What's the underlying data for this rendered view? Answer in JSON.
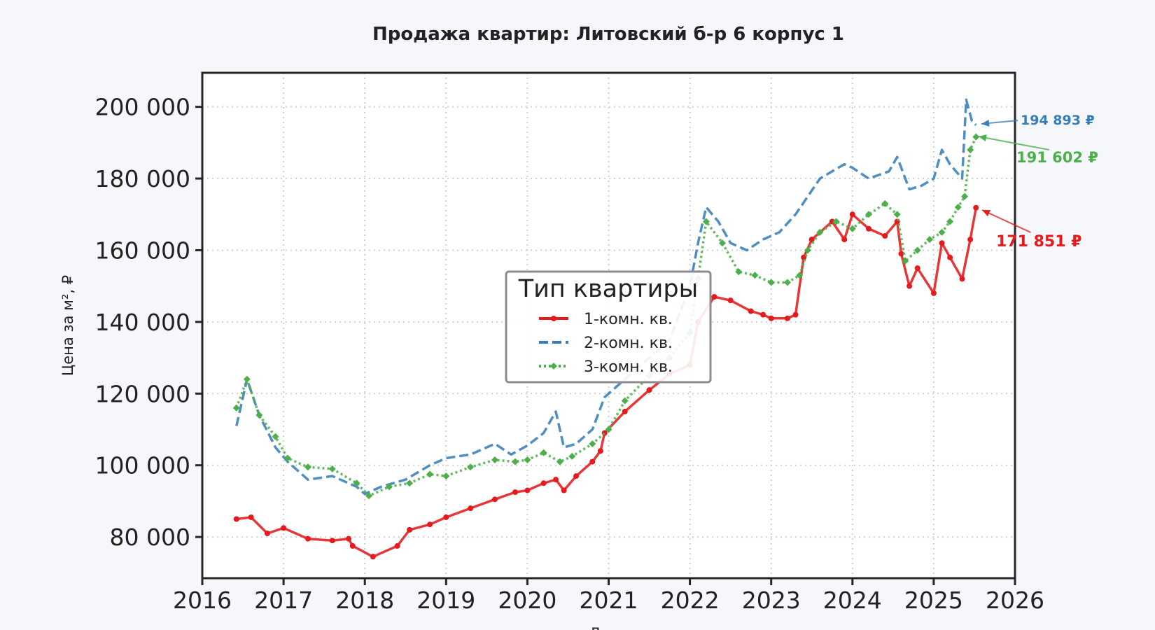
{
  "chart_data": {
    "type": "line",
    "title": "Продажа квартир: Литовский б-р 6 корпус 1",
    "xlabel": "Д",
    "ylabel": "Цена за м², ₽",
    "xlim": [
      2016,
      2026
    ],
    "ylim": [
      68500,
      209500
    ],
    "x_ticks": [
      "2016",
      "2017",
      "2018",
      "2019",
      "2020",
      "2021",
      "2022",
      "2023",
      "2024",
      "2025",
      "2026"
    ],
    "y_ticks": [
      "80 000",
      "100 000",
      "120 000",
      "140 000",
      "160 000",
      "180 000",
      "200 000"
    ],
    "grid": true,
    "legend": {
      "title": "Тип квартиры",
      "placement": "center"
    },
    "series": [
      {
        "name": "1-комн. кв.",
        "color": "#e41a1c",
        "style": "solid-markers",
        "x": [
          2016.42,
          2016.6,
          2016.8,
          2017.0,
          2017.3,
          2017.6,
          2017.8,
          2017.85,
          2018.1,
          2018.4,
          2018.55,
          2018.8,
          2019.0,
          2019.3,
          2019.6,
          2019.85,
          2020.0,
          2020.2,
          2020.35,
          2020.45,
          2020.6,
          2020.8,
          2020.9,
          2020.95,
          2021.2,
          2021.5,
          2021.75,
          2022.0,
          2022.1,
          2022.3,
          2022.5,
          2022.75,
          2022.9,
          2023.0,
          2023.2,
          2023.3,
          2023.4,
          2023.5,
          2023.75,
          2023.9,
          2024.0,
          2024.2,
          2024.4,
          2024.55,
          2024.6,
          2024.7,
          2024.8,
          2025.0,
          2025.1,
          2025.2,
          2025.35,
          2025.45,
          2025.52
        ],
        "y": [
          85000,
          85500,
          81000,
          82500,
          79500,
          79000,
          79500,
          77500,
          74500,
          77500,
          82000,
          83500,
          85500,
          88000,
          90500,
          92500,
          93000,
          95000,
          96000,
          93000,
          97000,
          101000,
          104000,
          109000,
          115000,
          121000,
          125500,
          128000,
          140000,
          147000,
          146000,
          143000,
          142000,
          141000,
          141000,
          142000,
          158000,
          163000,
          168000,
          163000,
          170000,
          166000,
          164000,
          168000,
          159000,
          150000,
          155000,
          148000,
          162000,
          158000,
          152000,
          163000,
          171851
        ]
      },
      {
        "name": "2-комн. кв.",
        "color": "#377eb8",
        "style": "dashed",
        "x": [
          2016.42,
          2016.55,
          2016.7,
          2016.9,
          2017.05,
          2017.3,
          2017.6,
          2017.9,
          2018.0,
          2018.2,
          2018.5,
          2018.8,
          2019.0,
          2019.3,
          2019.6,
          2019.8,
          2020.0,
          2020.2,
          2020.35,
          2020.45,
          2020.6,
          2020.8,
          2020.95,
          2021.2,
          2021.5,
          2021.75,
          2022.0,
          2022.1,
          2022.2,
          2022.35,
          2022.5,
          2022.7,
          2022.9,
          2023.1,
          2023.3,
          2023.45,
          2023.6,
          2023.75,
          2023.9,
          2024.0,
          2024.2,
          2024.45,
          2024.55,
          2024.7,
          2024.85,
          2025.0,
          2025.1,
          2025.2,
          2025.35,
          2025.4,
          2025.47,
          2025.52
        ],
        "y": [
          111000,
          124000,
          114000,
          105000,
          101000,
          96000,
          97000,
          94000,
          92000,
          94000,
          96000,
          100000,
          102000,
          103000,
          106000,
          103000,
          105500,
          109000,
          115000,
          105000,
          106000,
          110000,
          119000,
          124000,
          130000,
          135000,
          150000,
          162000,
          172000,
          168000,
          162000,
          160000,
          163000,
          165000,
          170000,
          175000,
          180000,
          182000,
          184000,
          183000,
          180000,
          182000,
          186000,
          177000,
          178000,
          180000,
          188000,
          184000,
          180000,
          202000,
          196000,
          194893
        ]
      },
      {
        "name": "3-комн. кв.",
        "color": "#4daf4a",
        "style": "dotted-diamonds",
        "x": [
          2016.42,
          2016.55,
          2016.7,
          2016.9,
          2017.05,
          2017.3,
          2017.6,
          2017.9,
          2018.05,
          2018.3,
          2018.55,
          2018.8,
          2019.0,
          2019.3,
          2019.6,
          2019.85,
          2020.0,
          2020.2,
          2020.4,
          2020.55,
          2020.8,
          2021.0,
          2021.2,
          2021.5,
          2021.75,
          2022.0,
          2022.1,
          2022.2,
          2022.4,
          2022.6,
          2022.8,
          2023.0,
          2023.2,
          2023.35,
          2023.45,
          2023.6,
          2023.8,
          2024.0,
          2024.2,
          2024.4,
          2024.55,
          2024.65,
          2024.8,
          2024.95,
          2025.1,
          2025.2,
          2025.3,
          2025.38,
          2025.45,
          2025.52
        ],
        "y": [
          116000,
          124000,
          114000,
          108000,
          102000,
          99500,
          99000,
          95000,
          91500,
          94000,
          95000,
          97500,
          97000,
          99500,
          101500,
          101000,
          101500,
          103500,
          101000,
          102500,
          106000,
          110000,
          118000,
          125000,
          130000,
          137000,
          152000,
          168000,
          162000,
          154000,
          153000,
          151000,
          151000,
          153000,
          160000,
          165000,
          168000,
          166000,
          170000,
          173000,
          170000,
          157000,
          160000,
          163000,
          165000,
          168000,
          172000,
          175000,
          188000,
          191602
        ]
      }
    ],
    "annotations": [
      {
        "text": "194 893 ₽",
        "color": "#377eb8"
      },
      {
        "text": "191 602 ₽",
        "color": "#4daf4a"
      },
      {
        "text": "171 851 ₽",
        "color": "#e41a1c"
      }
    ]
  }
}
